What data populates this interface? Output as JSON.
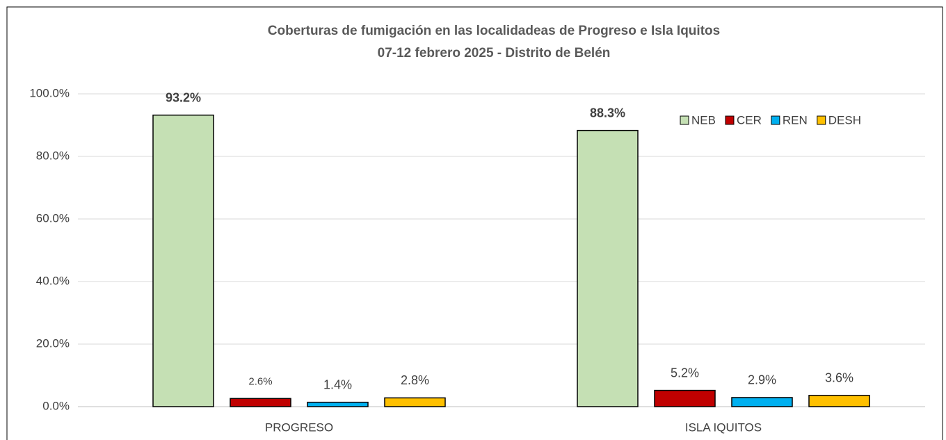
{
  "chart_data": {
    "type": "bar",
    "title": "Coberturas de fumigación en las localidadeas de Progreso e Isla Iquitos",
    "subtitle": "07-12 febrero 2025 - Distrito de Belén",
    "categories": [
      "PROGRESO",
      "ISLA IQUITOS"
    ],
    "series": [
      {
        "name": "NEB",
        "color": "#c5e0b4",
        "values": [
          93.2,
          88.3
        ],
        "value_labels": [
          "93.2%",
          "88.3%"
        ]
      },
      {
        "name": "CER",
        "color": "#c00000",
        "values": [
          2.6,
          5.2
        ],
        "value_labels": [
          "2.6%",
          "5.2%"
        ]
      },
      {
        "name": "REN",
        "color": "#00b0f0",
        "values": [
          1.4,
          2.9
        ],
        "value_labels": [
          "1.4%",
          "2.9%"
        ]
      },
      {
        "name": "DESH",
        "color": "#ffc000",
        "values": [
          2.8,
          3.6
        ],
        "value_labels": [
          "2.8%",
          "3.6%"
        ]
      }
    ],
    "ylim": [
      0,
      100
    ],
    "yticks": [
      {
        "value": 0,
        "label": "0.0%"
      },
      {
        "value": 20,
        "label": "20.0%"
      },
      {
        "value": 40,
        "label": "40.0%"
      },
      {
        "value": 60,
        "label": "60.0%"
      },
      {
        "value": 80,
        "label": "80.0%"
      },
      {
        "value": 100,
        "label": "100.0%"
      }
    ],
    "grid": true,
    "legend": "upper right"
  }
}
